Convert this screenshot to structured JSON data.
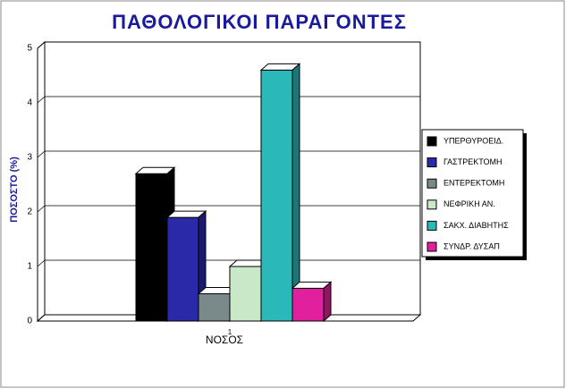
{
  "chart_data": {
    "type": "bar3d",
    "title": "ΠΑΘΟΛΟΓΙΚΟΙ ΠΑΡΑΓΟΝΤΕΣ",
    "y_label": "ΠΟΣΟΣΤΟ (%)",
    "x_label": "ΝΟΣΟΣ",
    "categories": [
      "1"
    ],
    "ylim": [
      0,
      5
    ],
    "yticks": [
      0,
      1,
      2,
      3,
      4,
      5
    ],
    "grid": true,
    "legend": "right",
    "series": [
      {
        "name": "ΥΠΕΡΘΥΡΟΕΙΔ.",
        "color": "#000000",
        "values": [
          2.7
        ]
      },
      {
        "name": "ΓΑΣΤΡΕΚΤΟΜΗ",
        "color": "#2a2aa8",
        "values": [
          1.9
        ]
      },
      {
        "name": "ΕΝΤΕΡΕΚΤΟΜΗ",
        "color": "#7a8a8a",
        "values": [
          0.5
        ]
      },
      {
        "name": "ΝΕΦΡΙΚΗ ΑΝ.",
        "color": "#c8e8c8",
        "values": [
          1.0
        ]
      },
      {
        "name": "ΣΑΚΧ. ΔΙΑΒΗΤΗΣ",
        "color": "#2ab8b8",
        "values": [
          4.6
        ]
      },
      {
        "name": "ΣΥΝΔΡ. ΔΥΣΑΠ",
        "color": "#e0209c",
        "values": [
          0.6
        ]
      }
    ]
  }
}
